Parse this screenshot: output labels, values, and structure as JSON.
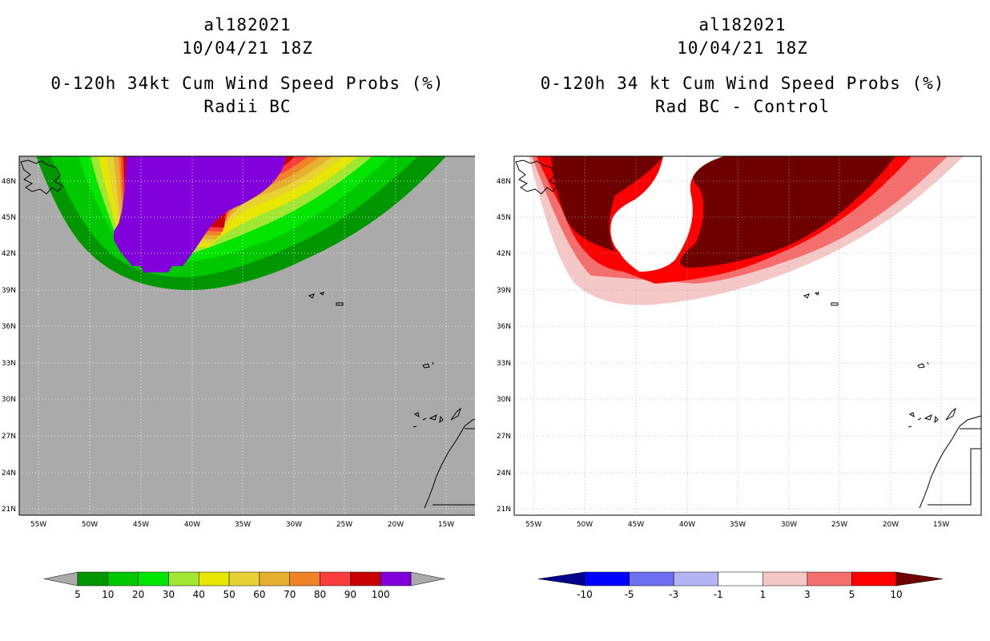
{
  "left": {
    "title_line1": "al182021",
    "title_line2": "10/04/21 18Z",
    "title_line3": "0-120h 34kt Cum Wind Speed Probs (%)",
    "title_line4": "Radii BC",
    "background_color": "#aaaaaa",
    "colorbar": {
      "labels": [
        "5",
        "10",
        "20",
        "30",
        "40",
        "50",
        "60",
        "70",
        "80",
        "90",
        "100"
      ],
      "colors": [
        "#009600",
        "#00c800",
        "#00e600",
        "#a0e632",
        "#e6e600",
        "#e6d232",
        "#e6af2d",
        "#f08228",
        "#fa3c3c",
        "#c80000",
        "#8200dc"
      ],
      "end_colors": [
        "#aaaaaa",
        "#aaaaaa"
      ]
    }
  },
  "right": {
    "title_line1": "al182021",
    "title_line2": "10/04/21 18Z",
    "title_line3": "0-120h 34 kt Cum Wind Speed Probs (%)",
    "title_line4": "Rad BC - Control",
    "background_color": "#ffffff",
    "colorbar": {
      "labels": [
        "-10",
        "-5",
        "-3",
        "-1",
        "1",
        "3",
        "5",
        "10"
      ],
      "colors": [
        "#0000ff",
        "#6e6ef0",
        "#b4b4f5",
        "#ffffff",
        "#f5c8c8",
        "#f56e6e",
        "#ff0000"
      ],
      "end_colors": [
        "#00008c",
        "#6e0000"
      ]
    }
  },
  "map": {
    "lat_labels": [
      "48N",
      "45N",
      "42N",
      "39N",
      "36N",
      "33N",
      "30N",
      "27N",
      "24N",
      "21N"
    ],
    "lon_labels": [
      "55W",
      "50W",
      "45W",
      "40W",
      "35W",
      "30W",
      "25W",
      "20W",
      "15W"
    ]
  }
}
